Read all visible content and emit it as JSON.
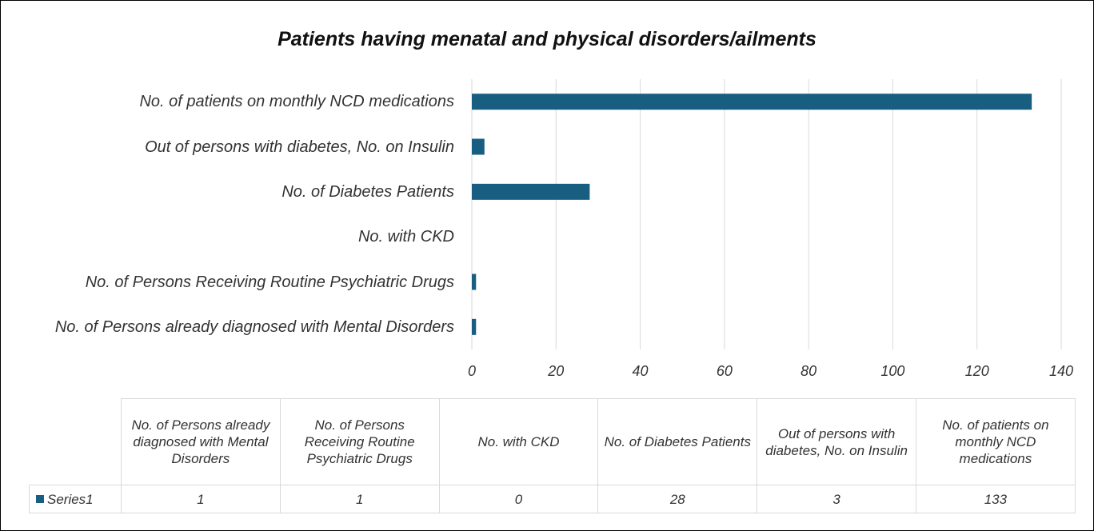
{
  "chart_data": {
    "type": "bar",
    "orientation": "horizontal",
    "title": "Patients having menatal and physical disorders/ailments",
    "categories": [
      "No. of Persons already diagnosed with Mental Disorders",
      "No. of Persons Receiving Routine Psychiatric Drugs",
      "No. with CKD",
      "No. of Diabetes Patients",
      "Out of persons with diabetes, No. on Insulin",
      "No. of patients on monthly NCD medications"
    ],
    "series": [
      {
        "name": "Series1",
        "color": "#175e80",
        "values": [
          1,
          1,
          0,
          28,
          3,
          133
        ]
      }
    ],
    "xlim": [
      0,
      140
    ],
    "xticks": [
      0,
      20,
      40,
      60,
      80,
      100,
      120,
      140
    ],
    "grid": true,
    "data_table": true
  }
}
